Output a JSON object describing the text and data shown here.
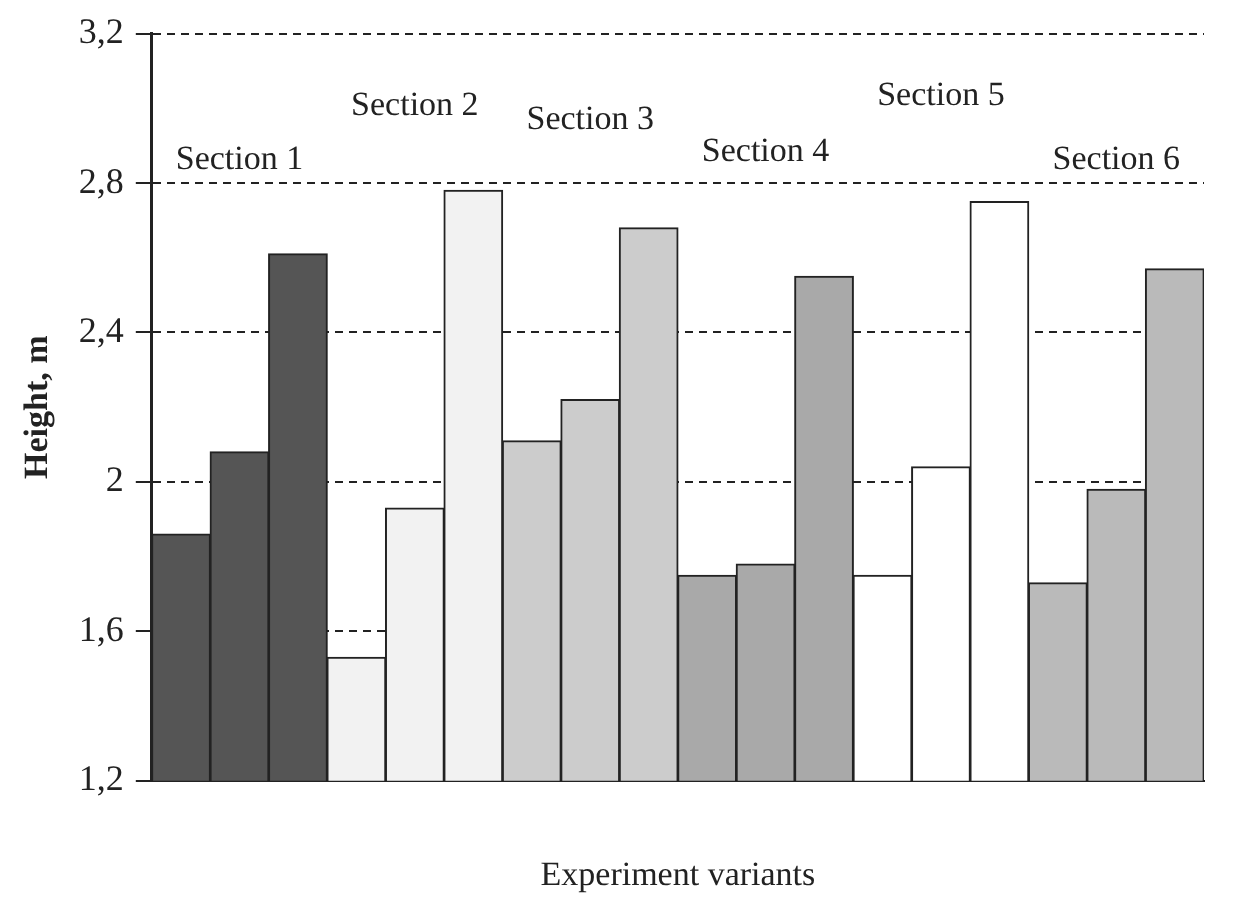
{
  "chart_data": {
    "type": "bar",
    "xlabel": "Experiment variants",
    "ylabel": "Height, m",
    "categories": [
      null,
      null,
      null,
      null,
      null,
      null,
      null,
      null,
      null,
      null,
      null,
      null,
      null,
      null,
      null,
      null,
      null,
      null
    ],
    "values": [
      1.86,
      2.08,
      2.61,
      1.53,
      1.93,
      2.78,
      2.11,
      2.22,
      2.68,
      1.75,
      1.78,
      2.55,
      1.75,
      2.04,
      2.75,
      1.73,
      1.98,
      2.57
    ],
    "colors": [
      "#555555",
      "#555555",
      "#555555",
      "#f2f2f2",
      "#f2f2f2",
      "#f2f2f2",
      "#cccccc",
      "#cccccc",
      "#cccccc",
      "#a9a9a9",
      "#a9a9a9",
      "#a9a9a9",
      "#ffffff",
      "#ffffff",
      "#ffffff",
      "#bababa",
      "#bababa",
      "#bababa"
    ],
    "ylim": [
      1.2,
      3.2
    ],
    "yticks": [
      {
        "value": 1.2,
        "label": "1,2"
      },
      {
        "value": 1.6,
        "label": "1,6"
      },
      2,
      {
        "value": 2.4,
        "label": "2,4"
      },
      {
        "value": 2.8,
        "label": "2,8"
      },
      {
        "value": 3.2,
        "label": "3,2"
      }
    ],
    "grid": "y",
    "legend": false,
    "annotations": [
      "Section 1",
      "Section 2",
      "Section 3",
      "Section 4",
      "Section 5",
      "Section 6"
    ]
  }
}
